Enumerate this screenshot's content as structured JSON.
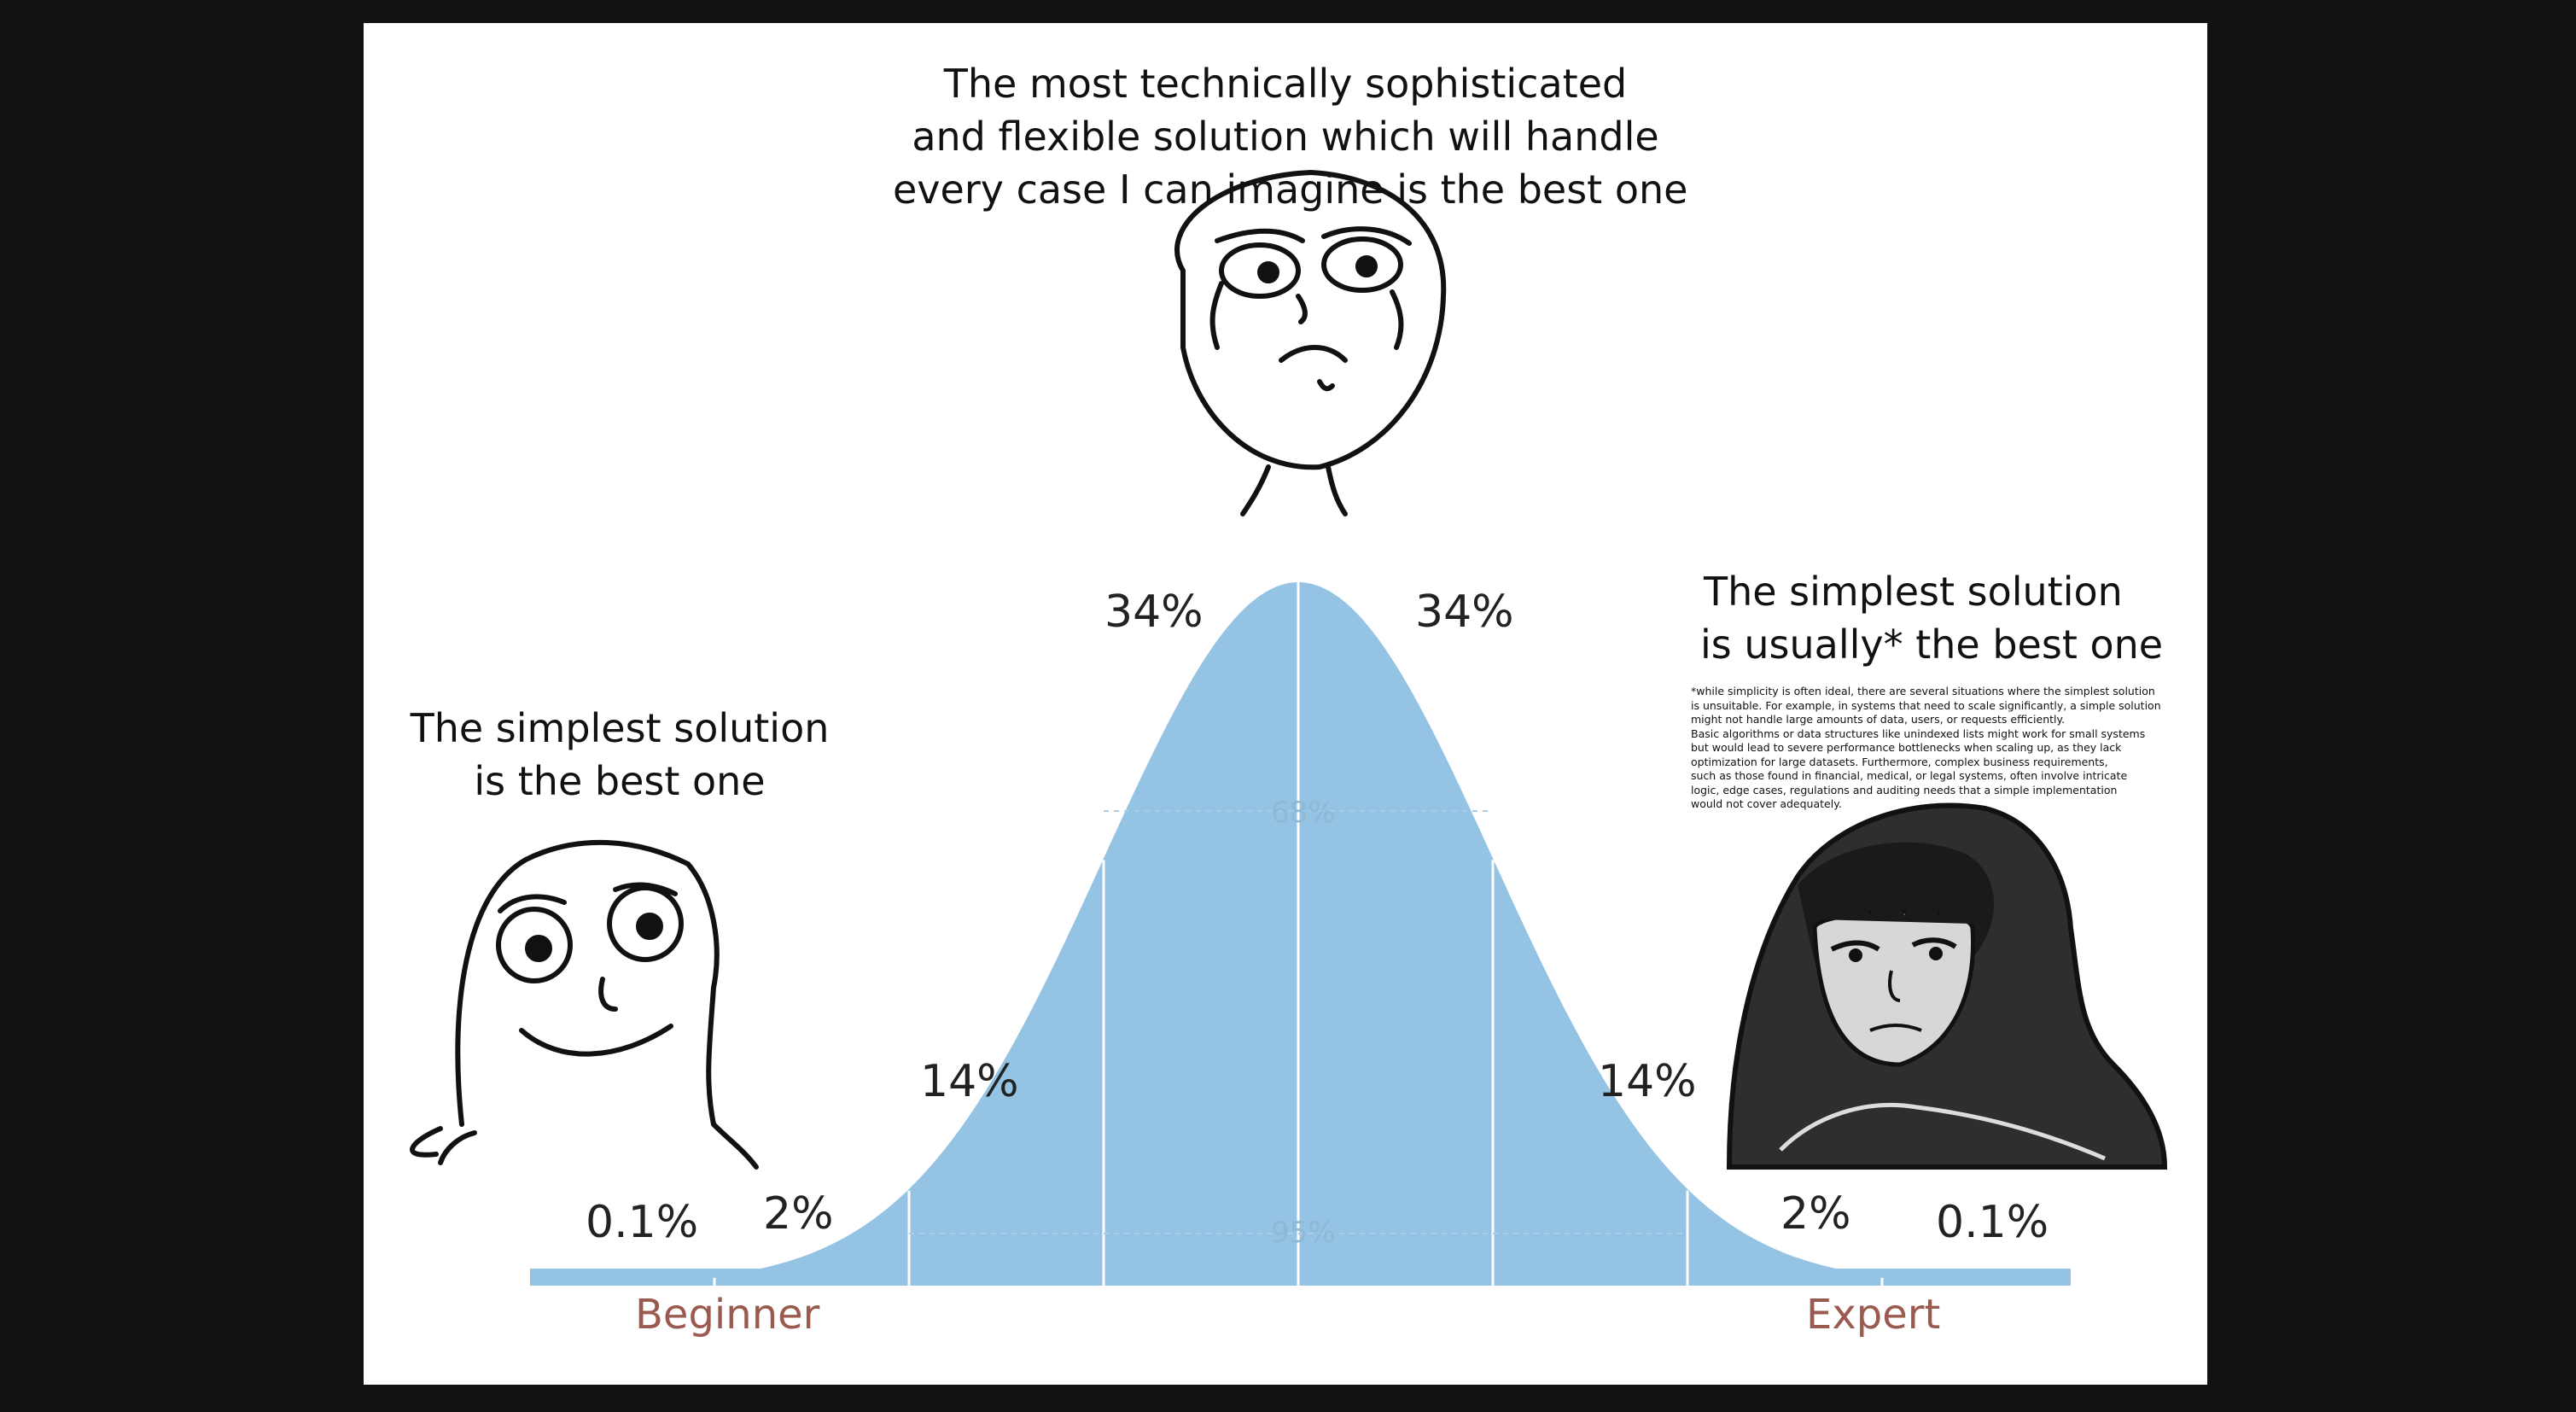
{
  "captions": {
    "top": [
      "The most technically sophisticated",
      "and flexible solution which will handle",
      "every case I can imagine is the best one"
    ],
    "left": [
      "The simplest solution",
      "is the best one"
    ],
    "right": [
      "The simplest solution",
      "is usually* the best one"
    ]
  },
  "footnote": [
    "*while simplicity is often ideal, there are several situations where the simplest solution",
    " is unsuitable. For example, in systems that need to scale significantly, a simple solution",
    "might not handle large amounts of data, users, or requests efficiently.",
    "Basic algorithms or data structures like unindexed lists might work for small systems",
    "but would lead to severe performance bottlenecks when scaling up, as they lack",
    "optimization for large datasets. Furthermore, complex business requirements,",
    "such as those found in financial, medical, or legal systems, often involve intricate",
    "logic, edge cases, regulations and auditing needs that a simple implementation",
    "would not cover adequately."
  ],
  "chart_data": {
    "type": "area",
    "segments": [
      {
        "label": "0.1%"
      },
      {
        "label": "2%"
      },
      {
        "label": "14%"
      },
      {
        "label": "34%"
      },
      {
        "label": "34%"
      },
      {
        "label": "14%"
      },
      {
        "label": "2%"
      },
      {
        "label": "0.1%"
      }
    ],
    "inner_labels": {
      "center": "68%",
      "bottom": "95%"
    },
    "x_labels": {
      "left": "Beginner",
      "right": "Expert"
    }
  },
  "colors": {
    "curve": "#94c3e4",
    "divider": "#ffffff",
    "axis_label": "#9b5a50",
    "frame": "#121212"
  },
  "icons": {
    "left": "happy-rage-face-icon",
    "top": "serious-rage-face-icon",
    "right": "hooded-wojak-icon"
  }
}
